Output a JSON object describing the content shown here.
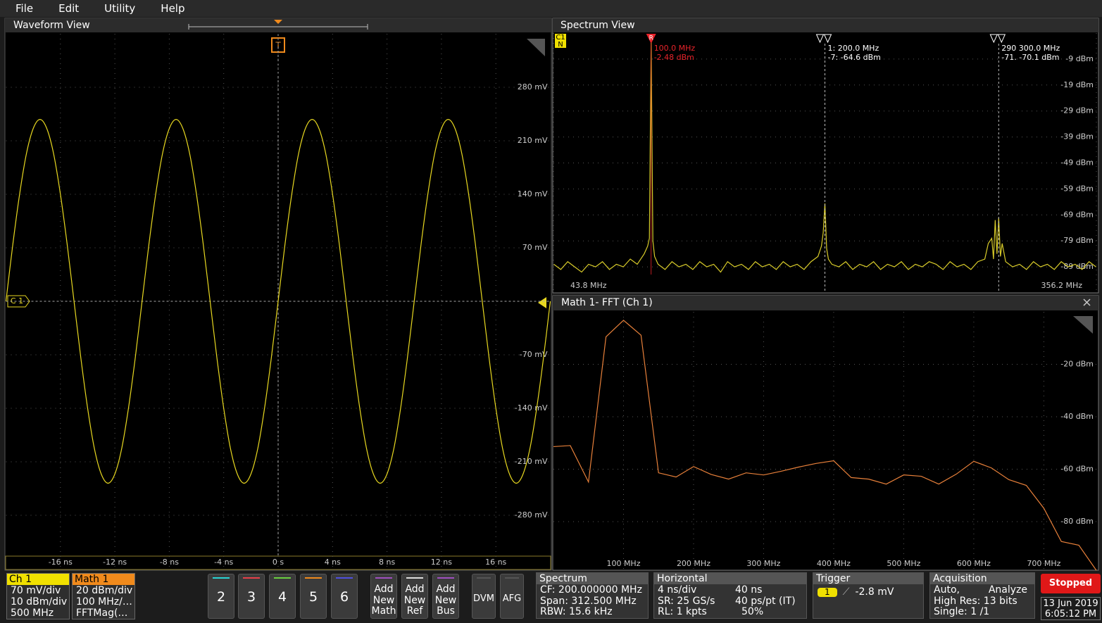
{
  "menu": [
    "File",
    "Edit",
    "Utility",
    "Help"
  ],
  "waveform_view": {
    "title": "Waveform View",
    "channel_label": "C 1",
    "trigger_label": "T",
    "color": "#e8d820",
    "xlim": [
      -20,
      20
    ],
    "ylim": [
      -350,
      350
    ],
    "xticks": [
      {
        "value": -16,
        "label": "-16 ns"
      },
      {
        "value": -12,
        "label": "-12 ns"
      },
      {
        "value": -8,
        "label": "-8 ns"
      },
      {
        "value": -4,
        "label": "-4 ns"
      },
      {
        "value": 0,
        "label": "0 s"
      },
      {
        "value": 4,
        "label": "4 ns"
      },
      {
        "value": 8,
        "label": "8 ns"
      },
      {
        "value": 12,
        "label": "12 ns"
      },
      {
        "value": 16,
        "label": "16 ns"
      }
    ],
    "yticks": [
      {
        "value": 280,
        "label": "280 mV"
      },
      {
        "value": 210,
        "label": "210 mV"
      },
      {
        "value": 140,
        "label": "140 mV"
      },
      {
        "value": 70,
        "label": "70 mV"
      },
      {
        "value": -70,
        "label": "-70 mV"
      },
      {
        "value": -140,
        "label": "-140 mV"
      },
      {
        "value": -210,
        "label": "-210 mV"
      },
      {
        "value": -280,
        "label": "-280 mV"
      }
    ],
    "x": [
      -20,
      -19.5,
      -19,
      -18.5,
      -18,
      -17.5,
      -17,
      -16.5,
      -16,
      -15.5,
      -15,
      -14.5,
      -14,
      -13.5,
      -13,
      -12.5,
      -12,
      -11.5,
      -11,
      -10.5,
      -10,
      -9.5,
      -9,
      -8.5,
      -8,
      -7.5,
      -7,
      -6.5,
      -6,
      -5.5,
      -5,
      -4.5,
      -4,
      -3.5,
      -3,
      -2.5,
      -2,
      -1.5,
      -1,
      -0.5,
      0,
      0.5,
      1,
      1.5,
      2,
      2.5,
      3,
      3.5,
      4,
      4.5,
      5,
      5.5,
      6,
      6.5,
      7,
      7.5,
      8,
      8.5,
      9,
      9.5,
      10,
      10.5,
      11,
      11.5,
      12,
      12.5,
      13,
      13.5,
      14,
      14.5,
      15,
      15.5,
      16,
      16.5,
      17,
      17.5,
      18,
      18.5,
      19,
      19.5,
      20
    ],
    "values": [
      0,
      74,
      140,
      193,
      226,
      238,
      226,
      193,
      140,
      74,
      0,
      -74,
      -140,
      -193,
      -226,
      -238,
      -226,
      -193,
      -140,
      -74,
      0,
      74,
      140,
      193,
      226,
      238,
      226,
      193,
      140,
      74,
      0,
      -74,
      -140,
      -193,
      -226,
      -238,
      -226,
      -193,
      -140,
      -74,
      0,
      74,
      140,
      193,
      226,
      238,
      226,
      193,
      140,
      74,
      0,
      -74,
      -140,
      -193,
      -226,
      -238,
      -226,
      -193,
      -140,
      -74,
      0,
      74,
      140,
      193,
      226,
      238,
      226,
      193,
      140,
      74,
      0,
      -74,
      -140,
      -193,
      -226,
      -238,
      -226,
      -193,
      -140,
      -74,
      0
    ]
  },
  "spectrum_view": {
    "title": "Spectrum View",
    "badge_top": "C1",
    "badge_bottom": "N",
    "color": "#d9cc2a",
    "xlim": [
      43.8,
      356.2
    ],
    "ylim": [
      -99,
      1
    ],
    "xticks": [
      {
        "value": 43.8,
        "label": "43.8 MHz"
      },
      {
        "value": 356.2,
        "label": "356.2 MHz"
      }
    ],
    "yticks": [
      {
        "value": -9,
        "label": "-9 dBm"
      },
      {
        "value": -19,
        "label": "-19 dBm"
      },
      {
        "value": -29,
        "label": "-29 dBm"
      },
      {
        "value": -39,
        "label": "-39 dBm"
      },
      {
        "value": -49,
        "label": "-49 dBm"
      },
      {
        "value": -59,
        "label": "-59 dBm"
      },
      {
        "value": -69,
        "label": "-69 dBm"
      },
      {
        "value": -79,
        "label": "-79 dBm"
      },
      {
        "value": -89,
        "label": "-89 dBm"
      }
    ],
    "markers": [
      {
        "name": "R",
        "x": 100,
        "freq": "100.0 MHz",
        "level": "-2.48 dBm",
        "color": "#e8232a"
      },
      {
        "x": 200,
        "freq": "1: 200.0 MHz",
        "level": "-7: -64.6 dBm",
        "color": "#ffffff"
      },
      {
        "x": 300,
        "freq": "290 300.0 MHz",
        "level": "-71. -70.1 dBm",
        "color": "#ffffff"
      }
    ],
    "x": [
      44,
      48,
      52,
      56,
      60,
      64,
      68,
      72,
      76,
      80,
      84,
      88,
      92,
      96,
      98,
      99,
      100,
      101,
      102,
      104,
      108,
      112,
      116,
      120,
      124,
      128,
      132,
      136,
      140,
      144,
      148,
      152,
      156,
      160,
      164,
      168,
      172,
      176,
      180,
      184,
      188,
      192,
      196,
      198,
      199,
      200,
      201,
      202,
      204,
      208,
      212,
      216,
      220,
      224,
      228,
      232,
      236,
      240,
      244,
      248,
      252,
      256,
      260,
      264,
      268,
      272,
      276,
      280,
      284,
      288,
      292,
      294,
      296,
      297,
      298,
      299,
      300,
      301,
      302,
      304,
      308,
      312,
      316,
      320,
      324,
      328,
      332,
      336,
      340,
      344,
      348,
      352,
      356
    ],
    "values": [
      -88,
      -90,
      -87,
      -89,
      -91,
      -88,
      -89,
      -87,
      -90,
      -88,
      -89,
      -86,
      -88,
      -84,
      -81,
      -78,
      -2.48,
      -79,
      -85,
      -88,
      -90,
      -87,
      -89,
      -88,
      -90,
      -87,
      -89,
      -88,
      -91,
      -87,
      -89,
      -88,
      -90,
      -87,
      -89,
      -88,
      -90,
      -87,
      -89,
      -88,
      -90,
      -87,
      -85,
      -81,
      -76,
      -64.6,
      -82,
      -86,
      -88,
      -89,
      -87,
      -90,
      -88,
      -89,
      -87,
      -90,
      -88,
      -89,
      -87,
      -90,
      -88,
      -89,
      -87,
      -88,
      -90,
      -87,
      -89,
      -88,
      -90,
      -87,
      -86,
      -80,
      -78,
      -86,
      -71,
      -84,
      -70.1,
      -85,
      -80,
      -87,
      -89,
      -88,
      -90,
      -87,
      -89,
      -88,
      -90,
      -87,
      -89,
      -88,
      -90,
      -87,
      -89
    ]
  },
  "math_view": {
    "title": "Math 1- FFT (Ch 1)",
    "color": "#e8803a",
    "xlim": [
      0,
      775
    ],
    "ylim": [
      -98,
      0
    ],
    "xticks": [
      {
        "value": 100,
        "label": "100 MHz"
      },
      {
        "value": 200,
        "label": "200 MHz"
      },
      {
        "value": 300,
        "label": "300 MHz"
      },
      {
        "value": 400,
        "label": "400 MHz"
      },
      {
        "value": 500,
        "label": "500 MHz"
      },
      {
        "value": 600,
        "label": "600 MHz"
      },
      {
        "value": 700,
        "label": "700 MHz"
      }
    ],
    "yticks": [
      {
        "value": -20,
        "label": "-20 dBm"
      },
      {
        "value": -40,
        "label": "-40 dBm"
      },
      {
        "value": -60,
        "label": "-60 dBm"
      },
      {
        "value": -80,
        "label": "-80 dBm"
      }
    ],
    "x": [
      0,
      24,
      50,
      75,
      100,
      125,
      150,
      175,
      200,
      225,
      250,
      275,
      300,
      325,
      350,
      375,
      400,
      425,
      450,
      475,
      500,
      525,
      550,
      575,
      600,
      625,
      650,
      675,
      700,
      725,
      750,
      775
    ],
    "values": [
      -51.4,
      -51,
      -64.9,
      -9.5,
      -3.2,
      -8.9,
      -61.4,
      -63,
      -59,
      -62,
      -63.8,
      -61.4,
      -62.2,
      -60.8,
      -59.2,
      -57.8,
      -56.8,
      -63.2,
      -63.8,
      -65.7,
      -62.2,
      -62.7,
      -65.7,
      -61.9,
      -57,
      -59.5,
      -64,
      -66.2,
      -74.9,
      -87.6,
      -89,
      -98.6
    ]
  },
  "bottom_bar": {
    "ch1": {
      "label": "Ch 1",
      "lines": [
        "70 mV/div",
        "10 dBm/div",
        "500 MHz"
      ]
    },
    "math1": {
      "label": "Math 1",
      "lines": [
        "20 dBm/div",
        "100 MHz/…",
        "FFTMag(…"
      ]
    },
    "channel_buttons": [
      "2",
      "3",
      "4",
      "5",
      "6"
    ],
    "add_buttons": [
      [
        "Add",
        "New",
        "Math"
      ],
      [
        "Add",
        "New",
        "Ref"
      ],
      [
        "Add",
        "New",
        "Bus"
      ]
    ],
    "tools": [
      "DVM",
      "AFG"
    ],
    "spectrum": {
      "title": "Spectrum",
      "lines": [
        "CF: 200.000000 MHz",
        "Span: 312.500 MHz",
        "RBW: 15.6 kHz"
      ]
    },
    "horizontal": {
      "title": "Horizontal",
      "left": [
        "4 ns/div",
        "SR: 25 GS/s",
        "RL: 1 kpts"
      ],
      "right": [
        "40 ns",
        "40 ps/pt (IT)",
        "50%"
      ]
    },
    "trigger": {
      "title": "Trigger",
      "source": "1",
      "level": "-2.8 mV"
    },
    "acquisition": {
      "title": "Acquisition",
      "left": [
        "Auto,",
        "High Res: 13 bits",
        "Single: 1 /1"
      ],
      "right": [
        "Analyze"
      ]
    },
    "status": "Stopped",
    "date": "13 Jun 2019",
    "time": "6:05:12 PM"
  }
}
